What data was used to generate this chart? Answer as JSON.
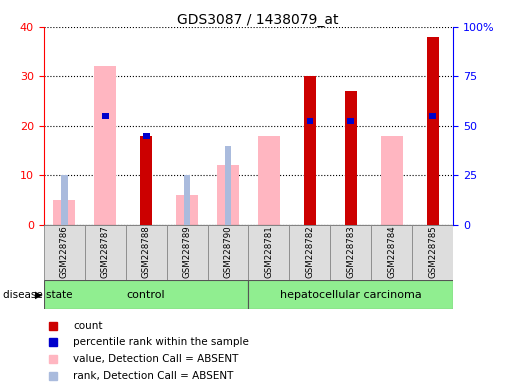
{
  "title": "GDS3087 / 1438079_at",
  "samples": [
    "GSM228786",
    "GSM228787",
    "GSM228788",
    "GSM228789",
    "GSM228790",
    "GSM228781",
    "GSM228782",
    "GSM228783",
    "GSM228784",
    "GSM228785"
  ],
  "count": [
    0,
    0,
    18,
    0,
    0,
    0,
    30,
    27,
    0,
    38
  ],
  "percentile_rank": [
    0,
    22,
    18,
    0,
    0,
    0,
    21,
    21,
    0,
    22
  ],
  "value_absent": [
    5,
    32,
    0,
    6,
    12,
    18,
    0,
    0,
    18,
    0
  ],
  "rank_absent": [
    10,
    0,
    0,
    10,
    16,
    0,
    0,
    0,
    0,
    0
  ],
  "count_color": "#CC0000",
  "percentile_color": "#0000CC",
  "value_absent_color": "#FFB6C1",
  "rank_absent_color": "#AABBDD",
  "ylim_left": [
    0,
    40
  ],
  "ylim_right": [
    0,
    100
  ],
  "yticks_left": [
    0,
    10,
    20,
    30,
    40
  ],
  "yticks_right": [
    0,
    25,
    50,
    75,
    100
  ],
  "ytick_labels_right": [
    "0",
    "25",
    "50",
    "75",
    "100%"
  ],
  "group_labels": [
    "control",
    "hepatocellular carcinoma"
  ],
  "disease_state_label": "disease state",
  "legend_items": [
    {
      "label": "count",
      "color": "#CC0000"
    },
    {
      "label": "percentile rank within the sample",
      "color": "#0000CC"
    },
    {
      "label": "value, Detection Call = ABSENT",
      "color": "#FFB6C1"
    },
    {
      "label": "rank, Detection Call = ABSENT",
      "color": "#AABBDD"
    }
  ],
  "bar_width": 0.3
}
